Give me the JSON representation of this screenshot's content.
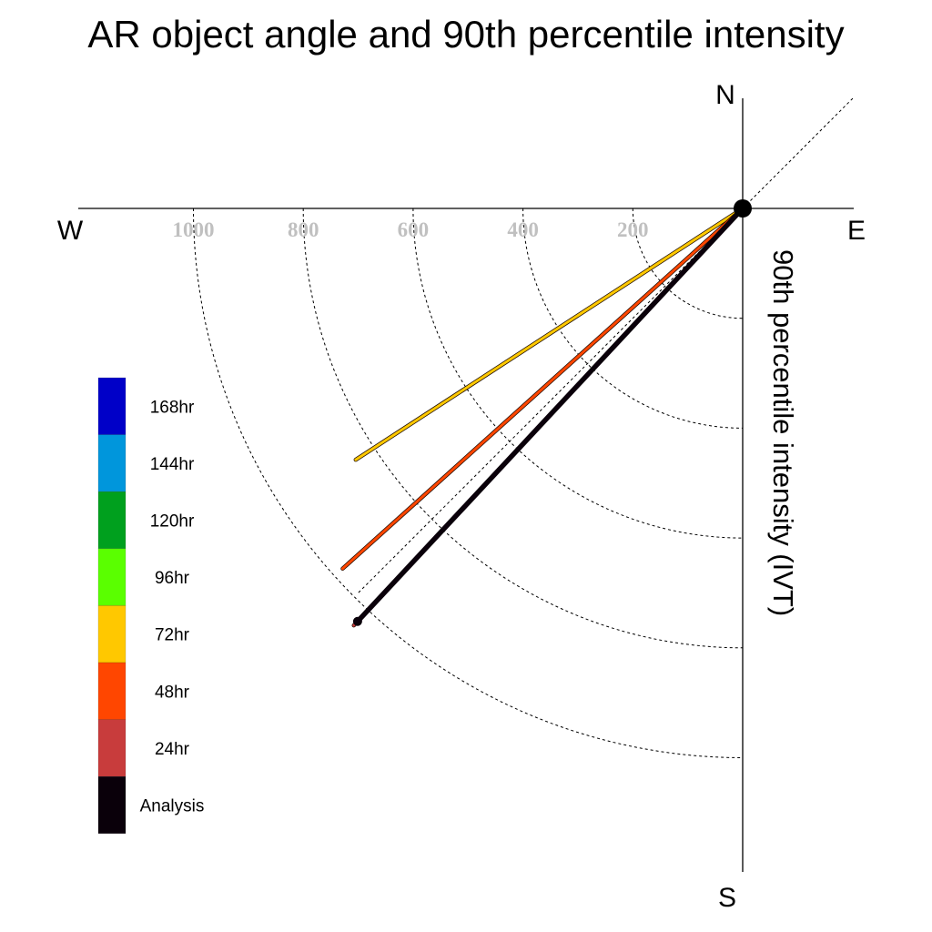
{
  "chart_data": {
    "type": "polar-line",
    "title": "AR object angle and 90th percentile intensity",
    "radial_axis_label": "90th percentile intensity (IVT)",
    "directions": {
      "north": "N",
      "south": "S",
      "east": "E",
      "west": "W"
    },
    "radial_ticks": [
      200,
      400,
      600,
      800,
      1000
    ],
    "radial_max": 1200,
    "angle_convention": "degrees counter-clockwise from east",
    "grid": true,
    "legend_position": "left",
    "legend": [
      {
        "label": "168hr",
        "color": "#0000c8"
      },
      {
        "label": "144hr",
        "color": "#0096dc"
      },
      {
        "label": "120hr",
        "color": "#00a01e"
      },
      {
        "label": "96hr",
        "color": "#5aff00"
      },
      {
        "label": "72hr",
        "color": "#ffc800"
      },
      {
        "label": "48hr",
        "color": "#ff4600"
      },
      {
        "label": "24hr",
        "color": "#c83c3c"
      },
      {
        "label": "Analysis",
        "color": "#0a000a"
      }
    ],
    "series": [
      {
        "name": "72hr",
        "color": "#ffc800",
        "angle": 213,
        "intensity": 840
      },
      {
        "name": "48hr",
        "color": "#ff4600",
        "angle": 222,
        "intensity": 980
      },
      {
        "name": "24hr",
        "color": "#c83c3c",
        "angle": 227,
        "intensity": 1038
      },
      {
        "name": "Analysis",
        "color": "#0a000a",
        "angle": 227,
        "intensity": 1028
      }
    ]
  }
}
